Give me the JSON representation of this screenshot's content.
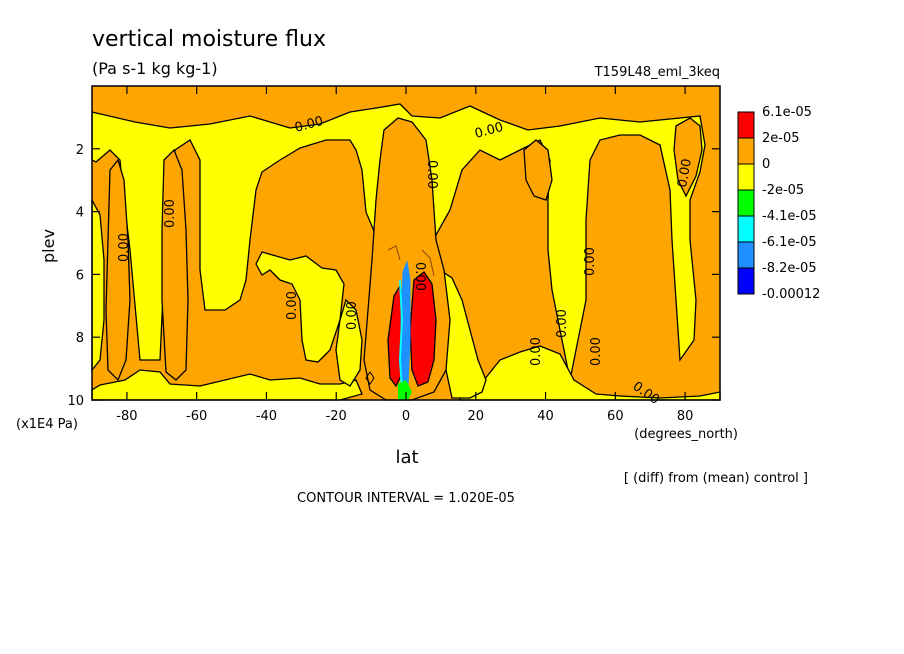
{
  "chart_data": {
    "type": "contour",
    "title": "vertical moisture flux",
    "units": "(Pa s-1 kg kg-1)",
    "run_label": "T159L48_eml_3keq",
    "xlabel": "lat",
    "x_units": "(degrees_north)",
    "ylabel": "plev",
    "y_units": "(x1E4 Pa)",
    "xlim": [
      -90,
      90
    ],
    "ylim": [
      10,
      0
    ],
    "x_ticks": [
      "-80",
      "-60",
      "-40",
      "-20",
      "0",
      "20",
      "40",
      "60",
      "80"
    ],
    "y_ticks": [
      "2",
      "4",
      "6",
      "8",
      "10"
    ],
    "contour_label": "0.00",
    "legend": [
      {
        "label": "6.1e-05",
        "color": "#ff0000"
      },
      {
        "label": "2e-05",
        "color": "#ffa500"
      },
      {
        "label": "0",
        "color": "#ffff00"
      },
      {
        "label": "-2e-05",
        "color": "#00ff00"
      },
      {
        "label": "-4.1e-05",
        "color": "#00ffff"
      },
      {
        "label": "-6.1e-05",
        "color": "#1e90ff"
      },
      {
        "label": "-8.2e-05",
        "color": "#0000ff"
      },
      {
        "label": "-0.00012",
        "color": "#ffffff"
      }
    ],
    "footer_note": "[ (diff) from (mean) control ]",
    "contour_interval": "CONTOUR INTERVAL = 1.020E-05",
    "colors": {
      "red": "#ff0000",
      "orange": "#ffa500",
      "yellow": "#ffff00",
      "green": "#00ff00",
      "cyan": "#00ffff",
      "blue": "#1e90ff"
    }
  }
}
